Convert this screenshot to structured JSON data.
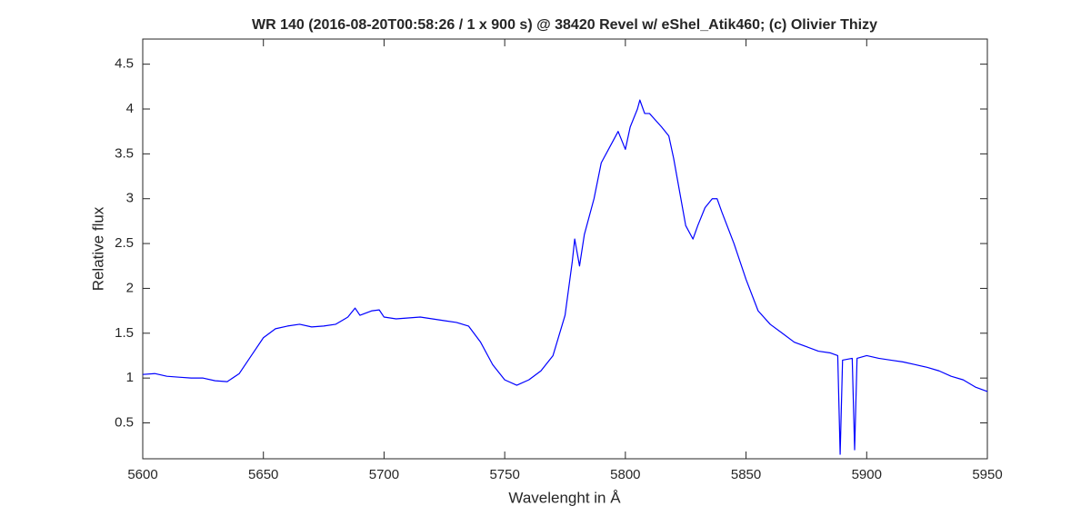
{
  "chart_data": {
    "type": "line",
    "title": "WR 140 (2016-08-20T00:58:26 / 1 x 900 s) @ 38420 Revel w/ eShel_Atik460; (c) Olivier Thizy",
    "x_label": "Wavelenght in Å",
    "y_label": "Relative flux",
    "x": [
      5600,
      5605,
      5610,
      5615,
      5620,
      5625,
      5630,
      5635,
      5640,
      5645,
      5650,
      5655,
      5660,
      5665,
      5670,
      5675,
      5680,
      5685,
      5688,
      5690,
      5695,
      5698,
      5700,
      5705,
      5710,
      5715,
      5720,
      5725,
      5730,
      5735,
      5740,
      5745,
      5750,
      5755,
      5760,
      5765,
      5770,
      5775,
      5778,
      5779,
      5781,
      5783,
      5787,
      5790,
      5795,
      5797,
      5800,
      5802,
      5805,
      5806,
      5808,
      5810,
      5815,
      5818,
      5820,
      5823,
      5825,
      5828,
      5830,
      5833,
      5836,
      5838,
      5840,
      5845,
      5850,
      5855,
      5860,
      5865,
      5870,
      5875,
      5880,
      5885,
      5888,
      5889,
      5890,
      5894,
      5895,
      5896,
      5900,
      5905,
      5910,
      5915,
      5920,
      5925,
      5930,
      5935,
      5940,
      5945,
      5950
    ],
    "series": [
      {
        "name": "WR 140",
        "color": "#0000ff",
        "values": [
          1.04,
          1.05,
          1.02,
          1.01,
          1.0,
          1.0,
          0.97,
          0.96,
          1.05,
          1.25,
          1.45,
          1.55,
          1.58,
          1.6,
          1.57,
          1.58,
          1.6,
          1.68,
          1.78,
          1.7,
          1.75,
          1.76,
          1.68,
          1.66,
          1.67,
          1.68,
          1.66,
          1.64,
          1.62,
          1.58,
          1.4,
          1.15,
          0.98,
          0.92,
          0.98,
          1.08,
          1.25,
          1.7,
          2.3,
          2.55,
          2.25,
          2.6,
          3.0,
          3.4,
          3.65,
          3.75,
          3.55,
          3.8,
          4.0,
          4.1,
          3.95,
          3.95,
          3.8,
          3.7,
          3.45,
          3.0,
          2.7,
          2.55,
          2.7,
          2.9,
          3.0,
          3.0,
          2.85,
          2.5,
          2.1,
          1.75,
          1.6,
          1.5,
          1.4,
          1.35,
          1.3,
          1.28,
          1.25,
          0.15,
          1.2,
          1.22,
          0.2,
          1.22,
          1.25,
          1.22,
          1.2,
          1.18,
          1.15,
          1.12,
          1.08,
          1.02,
          0.98,
          0.9,
          0.85
        ]
      }
    ],
    "xlim": [
      5600,
      5950
    ],
    "ylim": [
      0.1,
      4.78
    ],
    "xticks": [
      5600,
      5650,
      5700,
      5750,
      5800,
      5850,
      5900,
      5950
    ],
    "yticks": [
      0.5,
      1,
      1.5,
      2,
      2.5,
      3,
      3.5,
      4,
      4.5
    ]
  }
}
